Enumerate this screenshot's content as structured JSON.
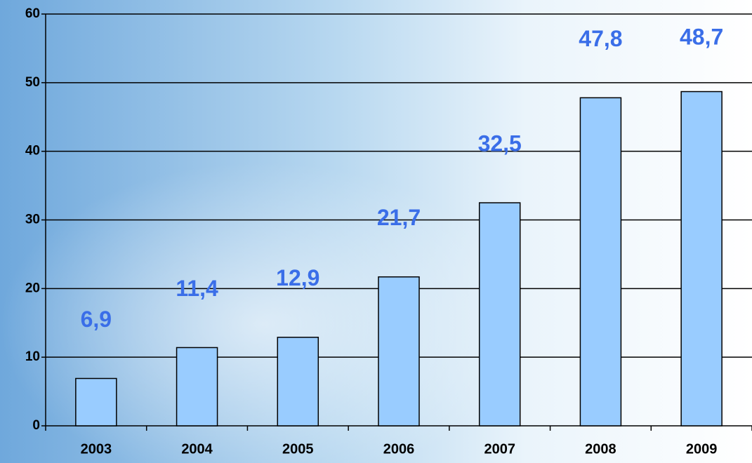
{
  "chart_data": {
    "type": "bar",
    "categories": [
      "2003",
      "2004",
      "2005",
      "2006",
      "2007",
      "2008",
      "2009"
    ],
    "values": [
      6.9,
      11.4,
      12.9,
      21.7,
      32.5,
      47.8,
      48.7
    ],
    "value_labels": [
      "6,9",
      "11,4",
      "12,9",
      "21,7",
      "32,5",
      "47,8",
      "48,7"
    ],
    "color": "#99ccff",
    "ylim": [
      0,
      60
    ],
    "yticks": [
      0,
      10,
      20,
      30,
      40,
      50,
      60
    ],
    "grid": true
  }
}
